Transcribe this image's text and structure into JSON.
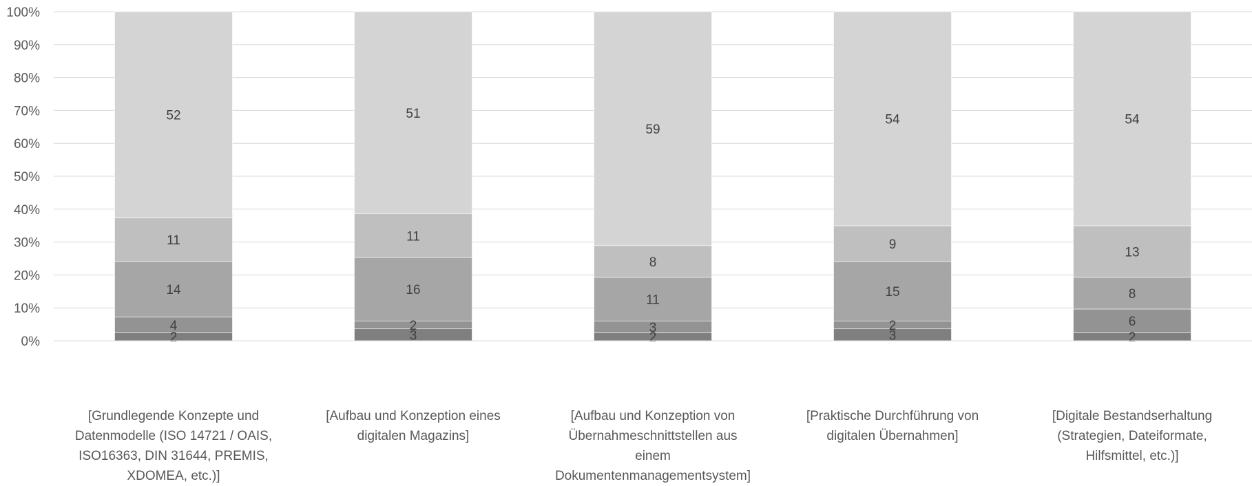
{
  "chart_data": {
    "type": "bar",
    "stacked": true,
    "percent_stacked": true,
    "categories": [
      "[Grundlegende Konzepte und Datenmodelle (ISO 14721 / OAIS, ISO16363, DIN 31644, PREMIS, XDOMEA, etc.)]",
      "[Aufbau und Konzeption eines digitalen Magazins]",
      "[Aufbau und Konzeption von Übernahmeschnittstellen aus einem Dokumentenmanagementsystem]",
      "[Praktische Durchführung von digitalen Übernahmen]",
      "[Digitale Bestandserhaltung (Strategien, Dateiformate, Hilfsmittel, etc.)]"
    ],
    "category_lines": [
      [
        "[Grundlegende Konzepte und",
        "Datenmodelle (ISO 14721 / OAIS,",
        "ISO16363, DIN 31644, PREMIS,",
        "XDOMEA, etc.)]"
      ],
      [
        "[Aufbau und Konzeption eines",
        "digitalen Magazins]"
      ],
      [
        "[Aufbau und Konzeption von",
        "Übernahmeschnittstellen aus",
        "einem",
        "Dokumentenmanagementsystem]"
      ],
      [
        "[Praktische Durchführung von",
        "digitalen Übernahmen]"
      ],
      [
        "[Digitale Bestandserhaltung",
        "(Strategien, Dateiformate,",
        "Hilfsmittel, etc.)]"
      ]
    ],
    "series": [
      {
        "values": [
          2,
          3,
          2,
          3,
          2
        ],
        "color": "#7f7f7f"
      },
      {
        "values": [
          4,
          2,
          3,
          2,
          6
        ],
        "color": "#939393"
      },
      {
        "values": [
          14,
          16,
          11,
          15,
          8
        ],
        "color": "#a6a6a6"
      },
      {
        "values": [
          11,
          11,
          8,
          9,
          13
        ],
        "color": "#bfbfbf"
      },
      {
        "values": [
          52,
          51,
          59,
          54,
          54
        ],
        "color": "#d4d4d4"
      }
    ],
    "y_ticks": [
      "0%",
      "10%",
      "20%",
      "30%",
      "40%",
      "50%",
      "60%",
      "70%",
      "80%",
      "90%",
      "100%"
    ],
    "ylim": [
      0,
      100
    ],
    "grid": true,
    "legend": "none",
    "title": "",
    "xlabel": "",
    "ylabel": ""
  }
}
